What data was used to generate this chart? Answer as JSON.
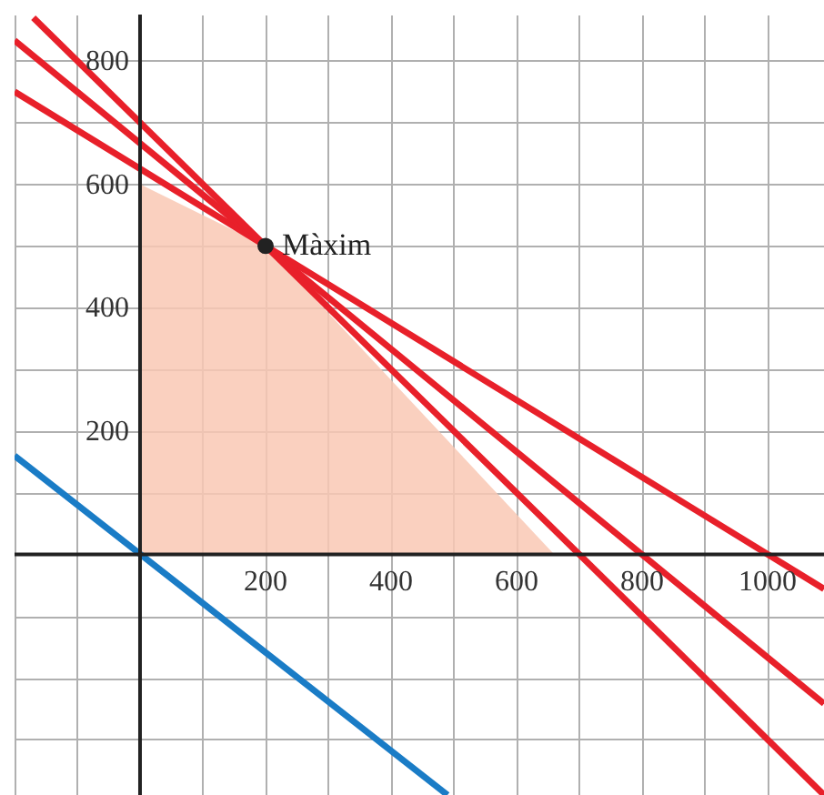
{
  "chart_data": {
    "type": "line",
    "xlim": [
      -200,
      1090
    ],
    "ylim": [
      -390,
      875
    ],
    "xticks": [
      {
        "value": -200,
        "label": null
      },
      {
        "value": -100,
        "label": null
      },
      {
        "value": 100,
        "label": null
      },
      200,
      {
        "value": 300,
        "label": null
      },
      400,
      {
        "value": 500,
        "label": null
      },
      600,
      {
        "value": 700,
        "label": null
      },
      800,
      {
        "value": 900,
        "label": null
      },
      1000
    ],
    "yticks": [
      {
        "value": -300,
        "label": null
      },
      {
        "value": -200,
        "label": null
      },
      {
        "value": -100,
        "label": null
      },
      {
        "value": 100,
        "label": null
      },
      200,
      {
        "value": 300,
        "label": null
      },
      400,
      {
        "value": 500,
        "label": null
      },
      600,
      {
        "value": 700,
        "label": null
      },
      800
    ],
    "grid": true,
    "series": [
      {
        "type": "area",
        "color": "#f9c8b4",
        "x": [
          0,
          0,
          200,
          660
        ],
        "values": [
          0,
          600,
          500,
          0
        ]
      },
      {
        "color": "#e8202a",
        "x": [
          -200,
          1090
        ],
        "values": [
          750,
          -56
        ]
      },
      {
        "color": "#e8202a",
        "x": [
          -200,
          1090
        ],
        "values": [
          833,
          -242
        ]
      },
      {
        "color": "#e8202a",
        "x": [
          -170,
          1090
        ],
        "values": [
          870,
          -390
        ]
      },
      {
        "color": "#1a7cc6",
        "x": [
          -200,
          490
        ],
        "values": [
          160,
          -390
        ]
      },
      {
        "type": "scatter",
        "color": "#222222",
        "x": [
          200
        ],
        "values": [
          500
        ]
      }
    ],
    "annotations": [
      {
        "text": "Màxim",
        "x": 200,
        "y": 500
      }
    ]
  }
}
